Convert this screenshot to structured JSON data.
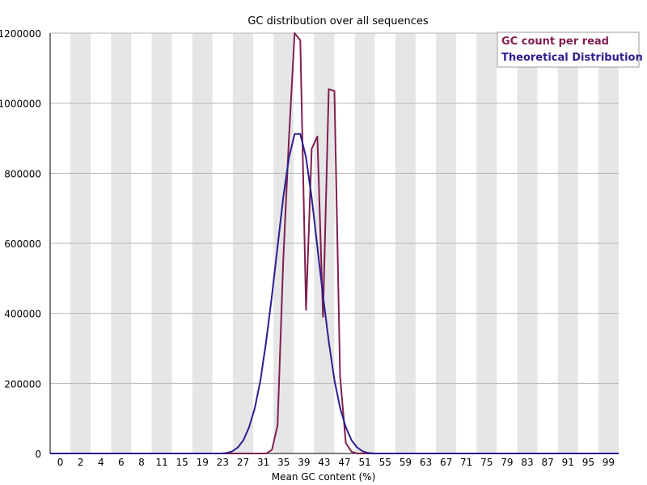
{
  "chart_data": {
    "type": "line",
    "title": "GC distribution over all sequences",
    "xlabel": "Mean GC content (%)",
    "ylabel": "",
    "xlim": [
      0,
      100
    ],
    "ylim": [
      0,
      1200000
    ],
    "grid": true,
    "legend_position": "top-right",
    "x_tick_labels": [
      "0",
      "2",
      "4",
      "6",
      "8",
      "11",
      "15",
      "19",
      "23",
      "27",
      "31",
      "35",
      "39",
      "43",
      "47",
      "51",
      "55",
      "59",
      "63",
      "67",
      "71",
      "75",
      "79",
      "83",
      "87",
      "91",
      "95",
      "99"
    ],
    "y_tick_labels": [
      "0",
      "200000",
      "400000",
      "600000",
      "800000",
      "1000000",
      "1200000"
    ],
    "y_tick_values": [
      0,
      200000,
      400000,
      600000,
      800000,
      1000000,
      1200000
    ],
    "series": [
      {
        "name": "GC count per read",
        "color": "#7f1f4f",
        "points": [
          [
            0,
            0
          ],
          [
            1,
            0
          ],
          [
            2,
            0
          ],
          [
            3,
            0
          ],
          [
            4,
            0
          ],
          [
            5,
            0
          ],
          [
            6,
            0
          ],
          [
            7,
            0
          ],
          [
            8,
            0
          ],
          [
            9,
            0
          ],
          [
            10,
            0
          ],
          [
            11,
            0
          ],
          [
            12,
            0
          ],
          [
            13,
            0
          ],
          [
            14,
            0
          ],
          [
            15,
            0
          ],
          [
            16,
            0
          ],
          [
            17,
            0
          ],
          [
            18,
            0
          ],
          [
            19,
            0
          ],
          [
            20,
            0
          ],
          [
            21,
            0
          ],
          [
            22,
            0
          ],
          [
            23,
            0
          ],
          [
            24,
            0
          ],
          [
            25,
            0
          ],
          [
            26,
            0
          ],
          [
            27,
            0
          ],
          [
            28,
            0
          ],
          [
            29,
            0
          ],
          [
            30,
            0
          ],
          [
            31,
            0
          ],
          [
            32,
            0
          ],
          [
            33,
            0
          ],
          [
            34,
            0
          ],
          [
            35,
            0
          ],
          [
            36,
            0
          ],
          [
            37,
            0
          ],
          [
            38,
            0
          ],
          [
            39,
            10000
          ],
          [
            40,
            80000
          ],
          [
            41,
            550000
          ],
          [
            42,
            900000
          ],
          [
            43,
            1200000
          ],
          [
            44,
            1180000
          ],
          [
            45,
            410000
          ],
          [
            46,
            870000
          ],
          [
            47,
            905000
          ],
          [
            48,
            390000
          ],
          [
            49,
            1040000
          ],
          [
            50,
            1035000
          ],
          [
            51,
            220000
          ],
          [
            52,
            30000
          ],
          [
            53,
            5000
          ],
          [
            54,
            0
          ],
          [
            55,
            0
          ],
          [
            56,
            0
          ],
          [
            57,
            0
          ],
          [
            58,
            0
          ],
          [
            59,
            0
          ],
          [
            60,
            0
          ],
          [
            62,
            0
          ],
          [
            64,
            0
          ],
          [
            66,
            0
          ],
          [
            68,
            0
          ],
          [
            70,
            0
          ],
          [
            72,
            0
          ],
          [
            74,
            0
          ],
          [
            76,
            0
          ],
          [
            78,
            0
          ],
          [
            80,
            0
          ],
          [
            82,
            0
          ],
          [
            84,
            0
          ],
          [
            86,
            0
          ],
          [
            88,
            0
          ],
          [
            90,
            0
          ],
          [
            92,
            0
          ],
          [
            94,
            0
          ],
          [
            96,
            0
          ],
          [
            98,
            0
          ],
          [
            100,
            0
          ]
        ]
      },
      {
        "name": "Theoretical Distribution",
        "color": "#2a1f8f",
        "points": [
          [
            0,
            0
          ],
          [
            2,
            0
          ],
          [
            4,
            0
          ],
          [
            6,
            0
          ],
          [
            8,
            0
          ],
          [
            10,
            0
          ],
          [
            12,
            0
          ],
          [
            14,
            0
          ],
          [
            16,
            0
          ],
          [
            18,
            0
          ],
          [
            20,
            0
          ],
          [
            22,
            0
          ],
          [
            24,
            0
          ],
          [
            26,
            0
          ],
          [
            28,
            0
          ],
          [
            30,
            0
          ],
          [
            31,
            1500
          ],
          [
            32,
            6000
          ],
          [
            33,
            17000
          ],
          [
            34,
            38000
          ],
          [
            35,
            75000
          ],
          [
            36,
            130000
          ],
          [
            37,
            210000
          ],
          [
            38,
            320000
          ],
          [
            39,
            450000
          ],
          [
            40,
            590000
          ],
          [
            41,
            730000
          ],
          [
            42,
            845000
          ],
          [
            43,
            912000
          ],
          [
            44,
            912000
          ],
          [
            45,
            845000
          ],
          [
            46,
            730000
          ],
          [
            47,
            590000
          ],
          [
            48,
            450000
          ],
          [
            49,
            320000
          ],
          [
            50,
            210000
          ],
          [
            51,
            130000
          ],
          [
            52,
            75000
          ],
          [
            53,
            38000
          ],
          [
            54,
            17000
          ],
          [
            55,
            6000
          ],
          [
            56,
            1500
          ],
          [
            57,
            0
          ],
          [
            58,
            0
          ],
          [
            60,
            0
          ],
          [
            65,
            0
          ],
          [
            70,
            0
          ],
          [
            75,
            0
          ],
          [
            80,
            0
          ],
          [
            85,
            0
          ],
          [
            90,
            0
          ],
          [
            95,
            0
          ],
          [
            100,
            0
          ]
        ]
      }
    ]
  }
}
